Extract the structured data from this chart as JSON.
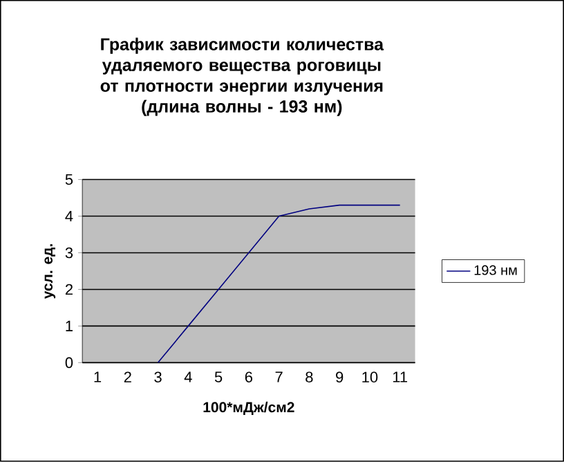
{
  "chart_data": {
    "type": "line",
    "title": "График зависимости количества удаляемого вещества роговицы от плотности энергии излучения (длина волны - 193 нм)",
    "xlabel": "100*мДж/см2",
    "ylabel": "усл. ед.",
    "categories": [
      "1",
      "2",
      "3",
      "4",
      "5",
      "6",
      "7",
      "8",
      "9",
      "10",
      "11"
    ],
    "series": [
      {
        "name": "193 нм",
        "color": "#000080",
        "values": [
          null,
          null,
          0,
          1,
          2,
          3,
          4,
          4.2,
          4.3,
          4.3,
          4.3
        ]
      }
    ],
    "ylim": [
      0,
      5
    ],
    "yticks": [
      0,
      1,
      2,
      3,
      4,
      5
    ],
    "grid": "y",
    "legend": "right",
    "marker": "none",
    "line_style": "solid"
  }
}
